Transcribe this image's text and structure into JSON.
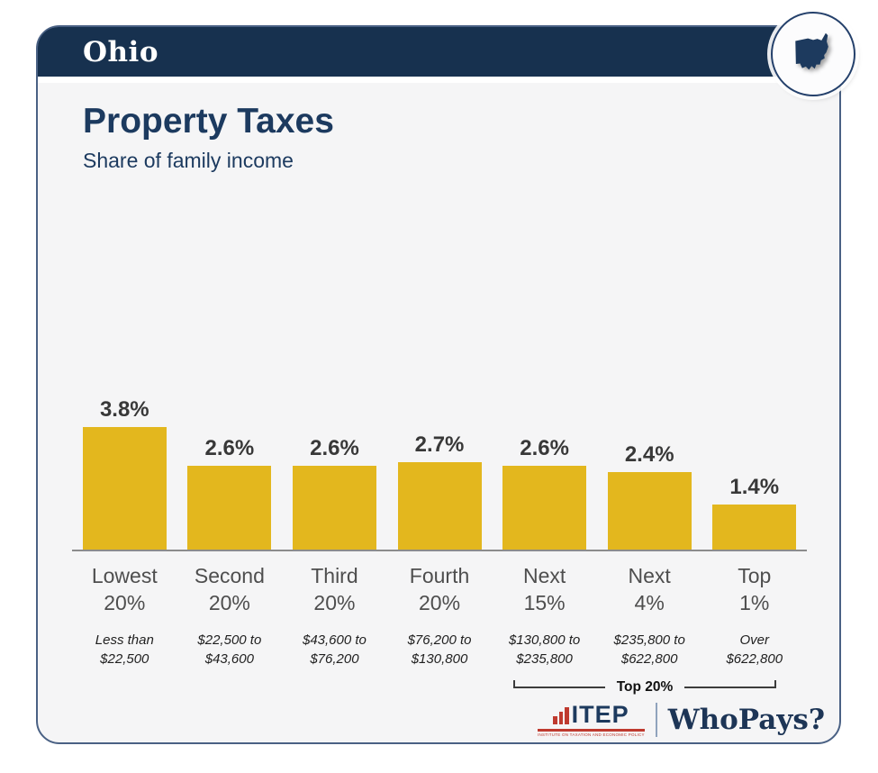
{
  "header": {
    "state": "Ohio"
  },
  "colors": {
    "navy_header": "#17314f",
    "navy_text": "#1c3a5f",
    "gold_bar": "#e3b71e",
    "itep_red": "#bf3a2f",
    "card_background": "#f5f5f6"
  },
  "chart_data": {
    "type": "bar",
    "title": "Property Taxes",
    "subtitle": "Share of family income",
    "categories": [
      "Lowest 20%",
      "Second 20%",
      "Third 20%",
      "Fourth 20%",
      "Next 15%",
      "Next 4%",
      "Top 1%"
    ],
    "category_lines": [
      [
        "Lowest",
        "20%"
      ],
      [
        "Second",
        "20%"
      ],
      [
        "Third",
        "20%"
      ],
      [
        "Fourth",
        "20%"
      ],
      [
        "Next",
        "15%"
      ],
      [
        "Next",
        "4%"
      ],
      [
        "Top",
        "1%"
      ]
    ],
    "income_range_lines": [
      [
        "Less than",
        "$22,500"
      ],
      [
        "$22,500 to",
        "$43,600"
      ],
      [
        "$43,600 to",
        "$76,200"
      ],
      [
        "$76,200 to",
        "$130,800"
      ],
      [
        "$130,800 to",
        "$235,800"
      ],
      [
        "$235,800 to",
        "$622,800"
      ],
      [
        "Over",
        "$622,800"
      ]
    ],
    "values": [
      3.8,
      2.6,
      2.6,
      2.7,
      2.6,
      2.4,
      1.4
    ],
    "value_labels": [
      "3.8%",
      "2.6%",
      "2.6%",
      "2.7%",
      "2.6%",
      "2.4%",
      "1.4%"
    ],
    "ylim": [
      0,
      4.2
    ],
    "bar_color": "#e3b71e",
    "grid": false,
    "legend": false,
    "annotation": {
      "label": "Top 20%",
      "covers": [
        "Next 15%",
        "Next 4%",
        "Top 1%"
      ]
    }
  },
  "footer": {
    "itep_name": "ITEP",
    "itep_subtitle": "INSTITUTE ON TAXATION AND ECONOMIC POLICY",
    "whopays": "WhoPays?"
  }
}
